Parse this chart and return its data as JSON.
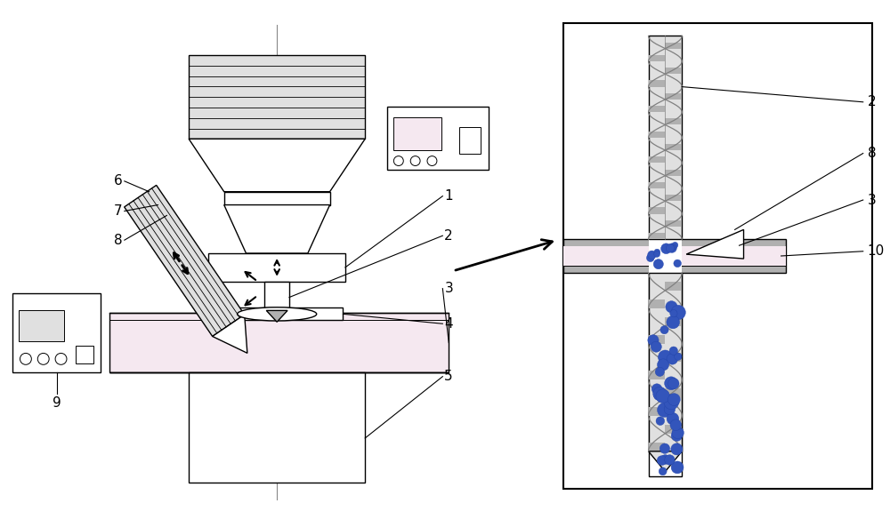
{
  "fig_width": 10.0,
  "fig_height": 5.75,
  "bg_color": "#ffffff",
  "line_color": "#000000",
  "gray_light": "#e0e0e0",
  "gray_medium": "#b0b0b0",
  "gray_dark": "#808080",
  "pink_light": "#f5e8f0",
  "blue_dot": "#3355bb",
  "drill_gray": "#a0a0a0"
}
